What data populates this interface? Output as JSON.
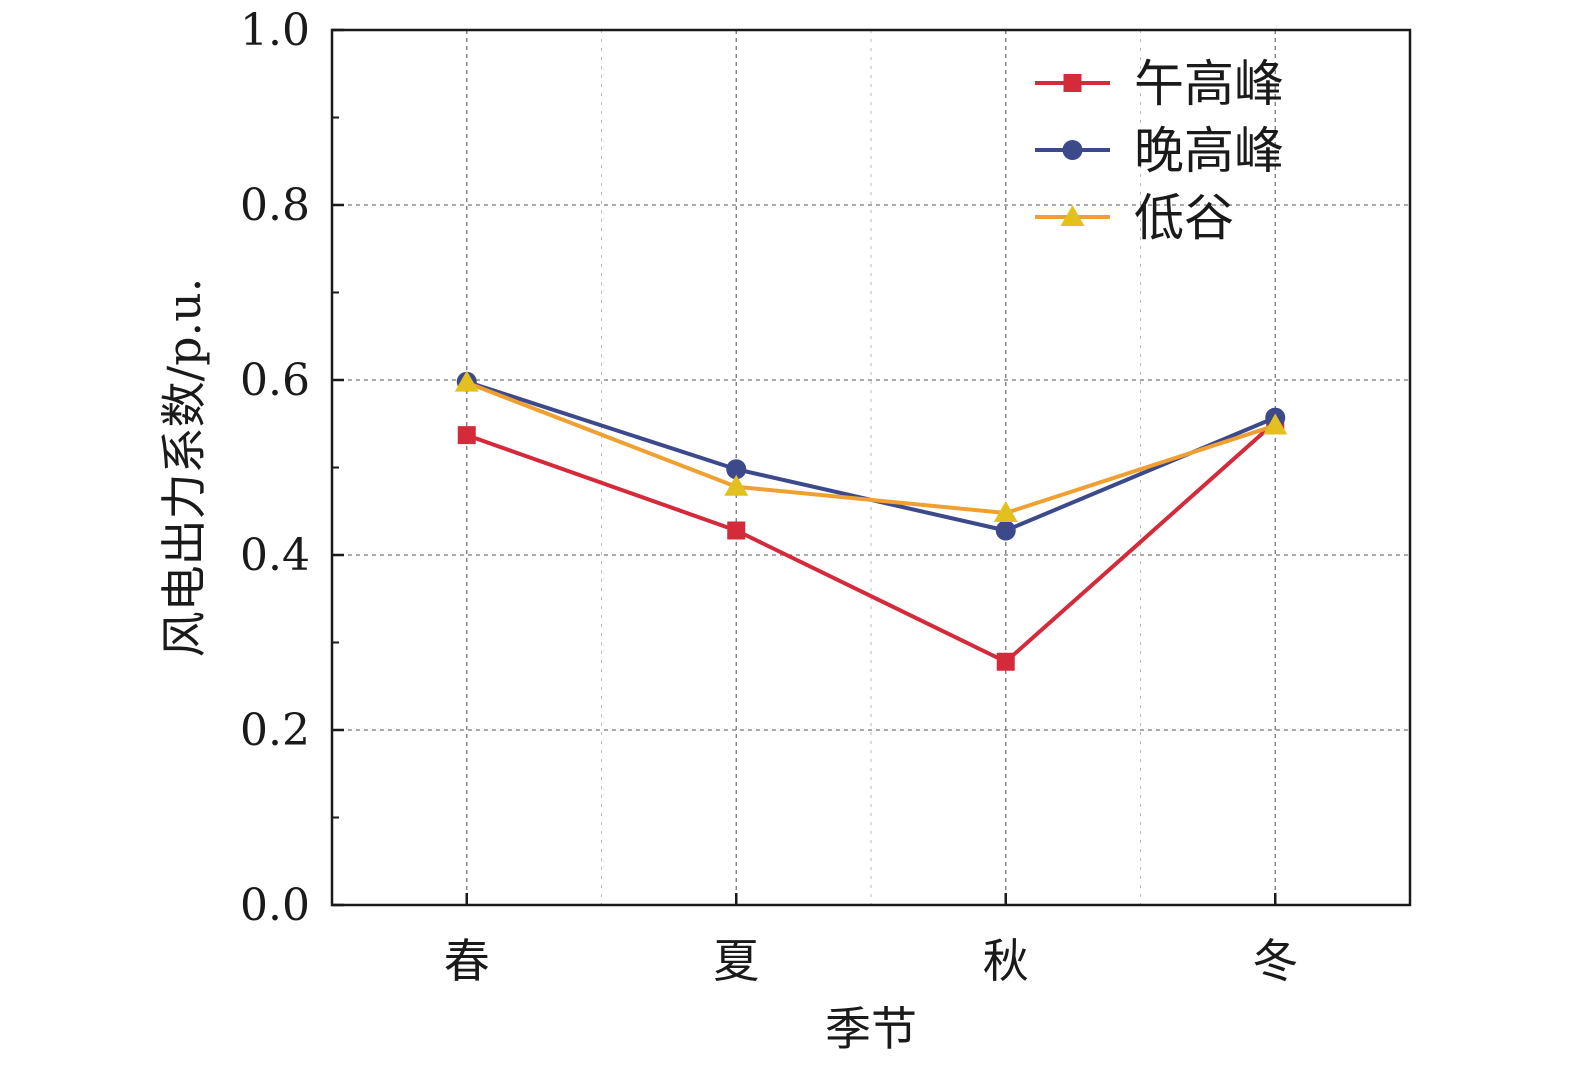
{
  "chart_data": {
    "type": "line",
    "categories": [
      "春",
      "夏",
      "秋",
      "冬"
    ],
    "xlabel": "季节",
    "ylabel": "风电出力系数/p.u.",
    "ylim": [
      0,
      1.0
    ],
    "yticks": [
      "0.0",
      "0.2",
      "0.4",
      "0.6",
      "0.8",
      "1.0"
    ],
    "grid": true,
    "legend_position": "top-right",
    "series": [
      {
        "name": "午高峰",
        "values": [
          0.537,
          0.428,
          0.278,
          0.552
        ],
        "color": "#d42a3a",
        "marker": "square"
      },
      {
        "name": "晚高峰",
        "values": [
          0.598,
          0.498,
          0.428,
          0.557
        ],
        "color": "#3c4a8c",
        "marker": "circle"
      },
      {
        "name": "低谷",
        "values": [
          0.597,
          0.478,
          0.448,
          0.548
        ],
        "color": "#f0a030",
        "marker": "triangle",
        "marker_color": "#e3c020"
      }
    ]
  }
}
